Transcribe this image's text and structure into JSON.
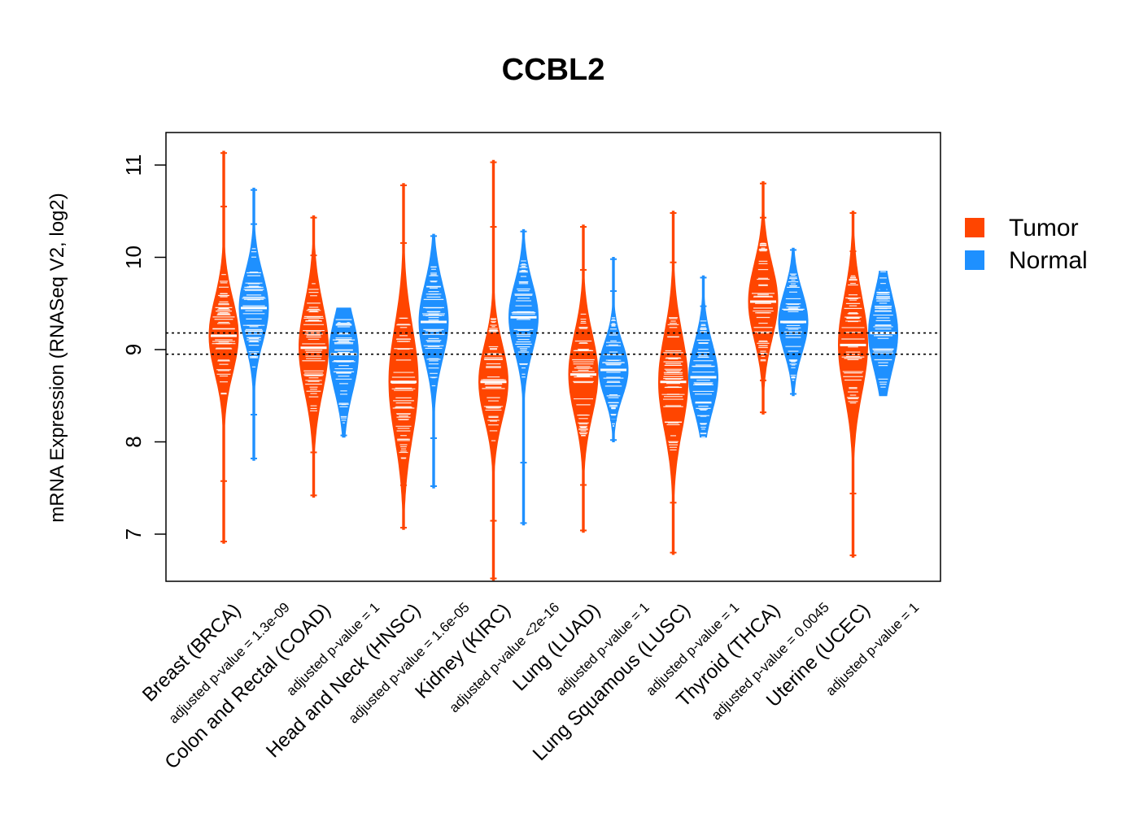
{
  "chart_data": {
    "type": "violin-beeswarm",
    "title": "CCBL2",
    "ylabel": "mRNA Expression (RNASeq V2, log2)",
    "ylim": [
      6.5,
      11.5
    ],
    "yticks": [
      7,
      8,
      9,
      10,
      11
    ],
    "reference_lines": [
      8.95,
      9.18
    ],
    "legend": {
      "placement": "right",
      "items": [
        {
          "name": "Tumor",
          "color": "#ff4500"
        },
        {
          "name": "Normal",
          "color": "#1e90ff"
        }
      ]
    },
    "groups": [
      {
        "label": "Breast (BRCA)",
        "pvalue": "adjusted p-value = 1.3e-09",
        "tumor": {
          "median": 9.15,
          "min": 6.9,
          "max": 11.15,
          "q1": 8.9,
          "q3": 9.45
        },
        "normal": {
          "median": 9.45,
          "min": 7.8,
          "max": 10.75,
          "q1": 9.2,
          "q3": 9.7
        }
      },
      {
        "label": "Colon and Rectal (COAD)",
        "pvalue": "adjusted p-value = 1",
        "tumor": {
          "median": 9.02,
          "min": 7.4,
          "max": 10.45,
          "q1": 8.7,
          "q3": 9.35
        },
        "normal": {
          "median": 8.95,
          "min": 8.05,
          "max": 9.45,
          "q1": 8.6,
          "q3": 9.15
        }
      },
      {
        "label": "Head and Neck (HNSC)",
        "pvalue": "adjusted p-value = 1.6e-05",
        "tumor": {
          "median": 8.65,
          "min": 7.05,
          "max": 10.8,
          "q1": 8.2,
          "q3": 9.0
        },
        "normal": {
          "median": 9.3,
          "min": 7.5,
          "max": 10.25,
          "q1": 9.0,
          "q3": 9.55
        }
      },
      {
        "label": "Kidney (KIRC)",
        "pvalue": "adjusted p-value <2e-16",
        "tumor": {
          "median": 8.65,
          "min": 6.5,
          "max": 11.05,
          "q1": 8.4,
          "q3": 8.95
        },
        "normal": {
          "median": 9.35,
          "min": 7.1,
          "max": 10.3,
          "q1": 9.1,
          "q3": 9.6
        }
      },
      {
        "label": "Lung (LUAD)",
        "pvalue": "adjusted p-value = 1",
        "tumor": {
          "median": 8.73,
          "min": 7.02,
          "max": 10.35,
          "q1": 8.45,
          "q3": 9.05
        },
        "normal": {
          "median": 8.78,
          "min": 8.0,
          "max": 10.0,
          "q1": 8.55,
          "q3": 8.95
        }
      },
      {
        "label": "Lung Squamous (LUSC)",
        "pvalue": "adjusted p-value = 1",
        "tumor": {
          "median": 8.65,
          "min": 6.78,
          "max": 10.5,
          "q1": 8.3,
          "q3": 9.0
        },
        "normal": {
          "median": 8.7,
          "min": 8.05,
          "max": 9.8,
          "q1": 8.45,
          "q3": 8.95
        }
      },
      {
        "label": "Thyroid (THCA)",
        "pvalue": "adjusted p-value = 0.0045",
        "tumor": {
          "median": 9.52,
          "min": 8.3,
          "max": 10.82,
          "q1": 9.25,
          "q3": 9.8
        },
        "normal": {
          "median": 9.3,
          "min": 8.5,
          "max": 10.1,
          "q1": 9.05,
          "q3": 9.5
        }
      },
      {
        "label": "Uterine (UCEC)",
        "pvalue": "adjusted p-value = 1",
        "tumor": {
          "median": 9.05,
          "min": 6.75,
          "max": 10.5,
          "q1": 8.7,
          "q3": 9.4
        },
        "normal": {
          "median": 9.18,
          "min": 8.5,
          "max": 9.85,
          "q1": 8.9,
          "q3": 9.45
        }
      }
    ]
  }
}
